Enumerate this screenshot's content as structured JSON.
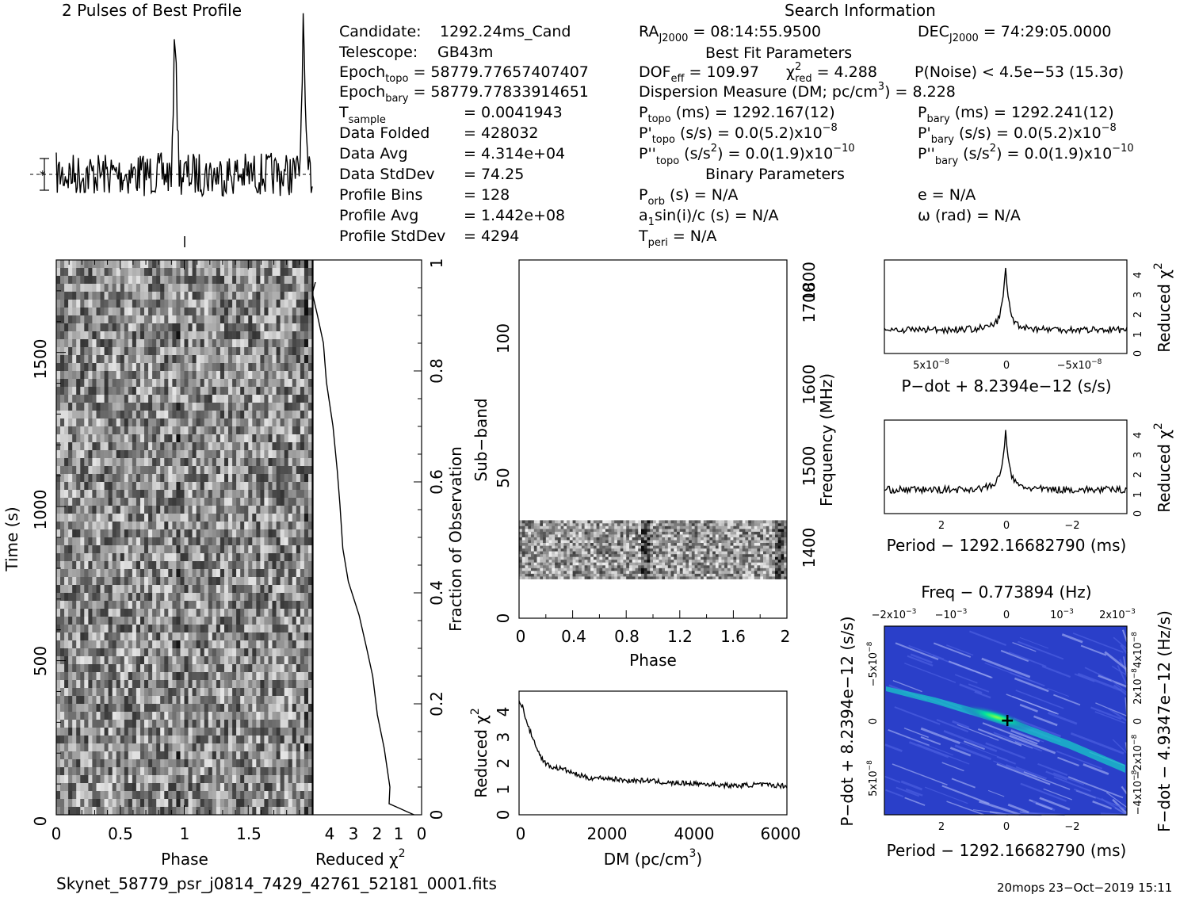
{
  "header": {
    "profile_title": "2 Pulses of Best Profile",
    "search_title": "Search Information",
    "best_fit_title": "Best Fit Parameters",
    "binary_title": "Binary Parameters"
  },
  "info": {
    "candidate": {
      "label": "Candidate:",
      "value": "1292.24ms_Cand"
    },
    "telescope": {
      "label": "Telescope:",
      "value": "GB43m"
    },
    "epoch_topo": {
      "label": "Epoch",
      "sub": "topo",
      "value": "= 58779.77657407407"
    },
    "epoch_bary": {
      "label": "Epoch",
      "sub": "bary",
      "value": "= 58779.77833914651"
    },
    "t_sample": {
      "label": "T",
      "sub": "sample",
      "value": "=   0.0041943"
    },
    "data_folded": {
      "label": "Data Folded",
      "value": "=   428032"
    },
    "data_avg": {
      "label": "Data Avg",
      "value": "=   4.314e+04"
    },
    "data_stddev": {
      "label": "Data StdDev",
      "value": "=   74.25"
    },
    "profile_bins": {
      "label": "Profile Bins",
      "value": "=   128"
    },
    "profile_avg": {
      "label": "Profile Avg",
      "value": "=   1.442e+08"
    },
    "profile_stddev": {
      "label": "Profile StdDev",
      "value": "=   4294"
    }
  },
  "search": {
    "ra": {
      "label": "RA",
      "sub": "J2000",
      "value": "= 08:14:55.9500"
    },
    "dec": {
      "label": "DEC",
      "sub": "J2000",
      "value": "= 74:29:05.0000"
    },
    "dof": {
      "label": "DOF",
      "sub": "eff",
      "value": "= 109.97"
    },
    "chi2": {
      "label": "χ",
      "sup": "2",
      "sub": "red",
      "value": "= 4.288"
    },
    "pnoise": "P(Noise) < 4.5e−53   (15.3σ)",
    "dm": {
      "text": "Dispersion Measure (DM; pc/cm",
      "sup": "3",
      "tail": ") = 8.228"
    },
    "p_topo": {
      "label": "P",
      "sub": "topo",
      "value": "(ms)  =   1292.167(12)"
    },
    "p_bary": {
      "label": "P",
      "sub": "bary",
      "value": "(ms)  =   1292.241(12)"
    },
    "pd_topo": {
      "label": "P'",
      "sub": "topo",
      "value": "(s/s) = 0.0(5.2)x10",
      "exp": "−8"
    },
    "pd_bary": {
      "label": "P'",
      "sub": "bary",
      "value": "(s/s) = 0.0(5.2)x10",
      "exp": "−8"
    },
    "pdd_topo": {
      "label": "P''",
      "sub": "topo",
      "value": "(s/s",
      "sup": "2",
      "tail": ") = 0.0(1.9)x10",
      "exp": "−10"
    },
    "pdd_bary": {
      "label": "P''",
      "sub": "bary",
      "value": "(s/s",
      "sup": "2",
      "tail": ") = 0.0(1.9)x10",
      "exp": "−10"
    },
    "p_orb": {
      "label": "P",
      "sub": "orb",
      "value": "(s) = N/A"
    },
    "e": "e = N/A",
    "a1": {
      "label": "a",
      "sub": "1",
      "value": "sin(i)/c (s) = N/A"
    },
    "omega": "ω (rad) = N/A",
    "t_peri": {
      "label": "T",
      "sub": "peri",
      "value": "= N/A"
    }
  },
  "footer": {
    "filename": "Skynet_58779_psr_j0814_7429_42761_52181_0001.fits",
    "stamp": "20mops 23−Oct−2019 15:11"
  },
  "axes": {
    "time_label": "Time (s)",
    "phase_label": "Phase",
    "redchi_label": "Reduced χ",
    "redchi_sup": "2",
    "fraction_label": "Fraction of Observation",
    "subband_label": "Sub−band",
    "freq_label": "Frequency (MHz)",
    "dm_label": "DM (pc/cm",
    "dm_sup": "3",
    "dm_tail": ")",
    "pdot_label": "P−dot + 8.2394e−12 (s/s)",
    "period_label": "Period − 1292.16682790 (ms)",
    "freq_top_label": "Freq − 0.773894 (Hz)",
    "fdot_label": "F−dot − 4.9347e−12 (Hz/s)"
  },
  "ticks": {
    "time": [
      "0",
      "500",
      "1000",
      "1500"
    ],
    "phase": [
      "0",
      "0.5",
      "1",
      "1.5"
    ],
    "redchi_h": [
      "4",
      "3",
      "2",
      "1",
      "0"
    ],
    "fraction": [
      "0",
      "0.2",
      "0.4",
      "0.6",
      "0.8",
      "1"
    ],
    "subband": [
      "0",
      "50",
      "100"
    ],
    "phase2": [
      "0",
      "0.4",
      "0.8",
      "1.2",
      "1.6",
      "2"
    ],
    "freq": [
      "1400",
      "1500",
      "1600",
      "1700",
      "1800"
    ],
    "dm": [
      "0",
      "2000",
      "4000",
      "6000"
    ],
    "redchi_v": [
      "0",
      "1",
      "2",
      "3",
      "4"
    ],
    "pdot_x": [
      "5x10",
      "0",
      "−5x10"
    ],
    "pdot_x_exp": "−8",
    "period_x": [
      "2",
      "0",
      "−2"
    ],
    "freq_top": [
      "−2x10",
      "−10",
      "0",
      "10",
      "2x10"
    ],
    "freq_top_exp": "−3",
    "pdot_y": [
      "−5x10",
      "0",
      "5x10"
    ],
    "pdot_y_exp": "−8",
    "fdot_y": [
      "4x10",
      "2x10",
      "0",
      "−2x10",
      "−4x10"
    ],
    "fdot_y_exp": "−8"
  },
  "colors": {
    "ink": "#000000",
    "ppdot_bg": "#2a3fc9",
    "ppdot_peak": "#00e0a0",
    "ppdot_core": "#8cff40"
  },
  "chart_data": [
    {
      "type": "line",
      "title": "2 Pulses of Best Profile",
      "x": "phase 0 to 2",
      "peaks_phase": [
        0.93,
        1.93
      ],
      "note_values": "profile shows one sharp pulse per period"
    },
    {
      "type": "heatmap",
      "name": "time-phase",
      "xlabel": "Phase",
      "ylabel": "Time (s)",
      "xlim": [
        0,
        2
      ],
      "ylim": [
        0,
        1800
      ]
    },
    {
      "type": "line",
      "name": "cumulative reduced chi2",
      "xlabel": "Reduced χ2",
      "xlim": [
        4,
        0
      ],
      "ylim": [
        0,
        1
      ],
      "x": [
        1.2,
        1.6,
        2.0,
        2.3,
        2.7,
        3.0,
        3.4,
        3.7,
        4.0
      ],
      "y": [
        0.02,
        0.15,
        0.25,
        0.35,
        0.45,
        0.55,
        0.65,
        0.78,
        0.93
      ]
    },
    {
      "type": "heatmap",
      "name": "subband-phase",
      "xlabel": "Phase",
      "ylabel": "Sub−band",
      "xlim": [
        0,
        2
      ],
      "ylim": [
        0,
        128
      ],
      "filled_subbands": [
        14,
        35
      ]
    },
    {
      "type": "line",
      "name": "DM curve",
      "xlabel": "DM (pc/cm3)",
      "ylabel": "Reduced χ2",
      "xlim": [
        0,
        6200
      ],
      "ylim": [
        0,
        4.7
      ],
      "x": [
        0,
        100,
        200,
        400,
        600,
        800,
        1000,
        1500,
        2000,
        3000,
        4000,
        5000,
        6200
      ],
      "y": [
        4.3,
        3.9,
        3.3,
        2.7,
        2.1,
        1.8,
        1.7,
        1.5,
        1.4,
        1.3,
        1.2,
        1.15,
        1.1
      ]
    },
    {
      "type": "line",
      "name": "P-dot curve",
      "xlabel": "P−dot + 8.2394e−12 (s/s)",
      "ylabel": "Reduced χ2",
      "ylim": [
        0,
        4.5
      ],
      "peak": 4.3
    },
    {
      "type": "line",
      "name": "Period curve",
      "xlabel": "Period − 1292.16682790 (ms)",
      "ylabel": "Reduced χ2",
      "xlim": [
        3.7,
        -3.7
      ],
      "ylim": [
        0,
        4.5
      ],
      "peak": 4.2
    },
    {
      "type": "heatmap",
      "name": "P-Pdot plane",
      "xlabel": "Period − 1292.16682790 (ms)",
      "ylabel": "P−dot + 8.2394e−12 (s/s)",
      "xlim": [
        3.7,
        -3.7
      ],
      "best": [
        0,
        0
      ]
    }
  ]
}
